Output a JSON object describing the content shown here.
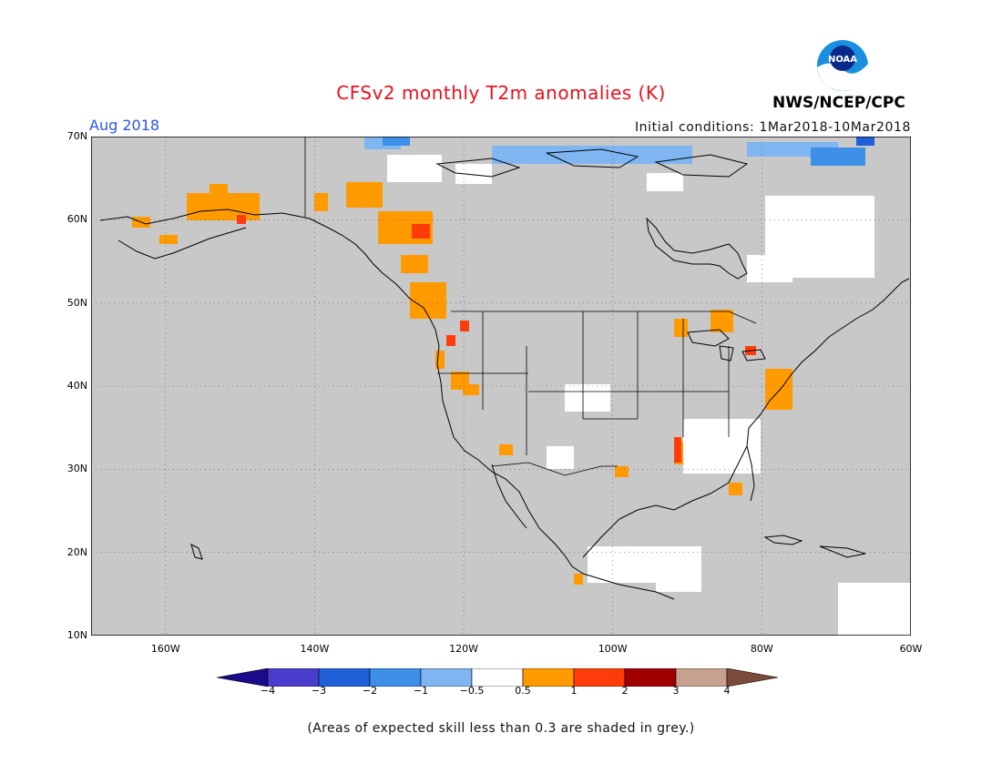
{
  "title": "CFSv2 monthly T2m anomalies (K)",
  "valid_month": "Aug 2018",
  "initial_conditions": "Initial conditions: 1Mar2018-10Mar2018",
  "org_label": "NWS/NCEP/CPC",
  "logo_text": "NOAA",
  "footnote": "(Areas of expected skill less than 0.3 are shaded in grey.)",
  "map": {
    "extent": {
      "lon_min": -170,
      "lon_max": -60,
      "lat_min": 10,
      "lat_max": 70
    },
    "grid_lines": "dotted",
    "lat_labels": [
      "70N",
      "60N",
      "50N",
      "40N",
      "30N",
      "20N",
      "10N"
    ],
    "lon_labels": [
      "160W",
      "140W",
      "120W",
      "100W",
      "80W",
      "60W"
    ],
    "colors": {
      "land_low_skill": "#c8c8c8",
      "white_bin": "#ffffff",
      "map_lines": "#000000"
    }
  },
  "colorbar": {
    "labels": [
      "−4",
      "−3",
      "−2",
      "−1",
      "−0.5",
      "0.5",
      "1",
      "2",
      "3",
      "4"
    ],
    "colors": [
      "#1a0a8c",
      "#4a3ccc",
      "#1f60d8",
      "#3e8fe8",
      "#7fb6f2",
      "#ffffff",
      "#ff9a00",
      "#ff3c0a",
      "#a00000",
      "#c8a090",
      "#7a4a3a"
    ]
  },
  "anomaly_regions": [
    {
      "name": "Alaska warm anomalies",
      "category": "0.5 to 1",
      "color": "#ff9a00"
    },
    {
      "name": "Yukon / British Columbia warm anomalies",
      "category": "1 to 2",
      "color": "#ff3c0a"
    },
    {
      "name": "Arctic Canada cool anomalies",
      "category": "-1 to -0.5",
      "color": "#7fb6f2"
    },
    {
      "name": "Greenland coast cool anomalies",
      "category": "-2 to -1",
      "color": "#3e8fe8"
    },
    {
      "name": "Hudson Bay east near-normal",
      "category": "-0.5 to 0.5",
      "color": "#ffffff"
    },
    {
      "name": "Southeast US near-normal",
      "category": "-0.5 to 0.5",
      "color": "#ffffff"
    },
    {
      "name": "Central America near-normal",
      "category": "-0.5 to 0.5",
      "color": "#ffffff"
    }
  ]
}
